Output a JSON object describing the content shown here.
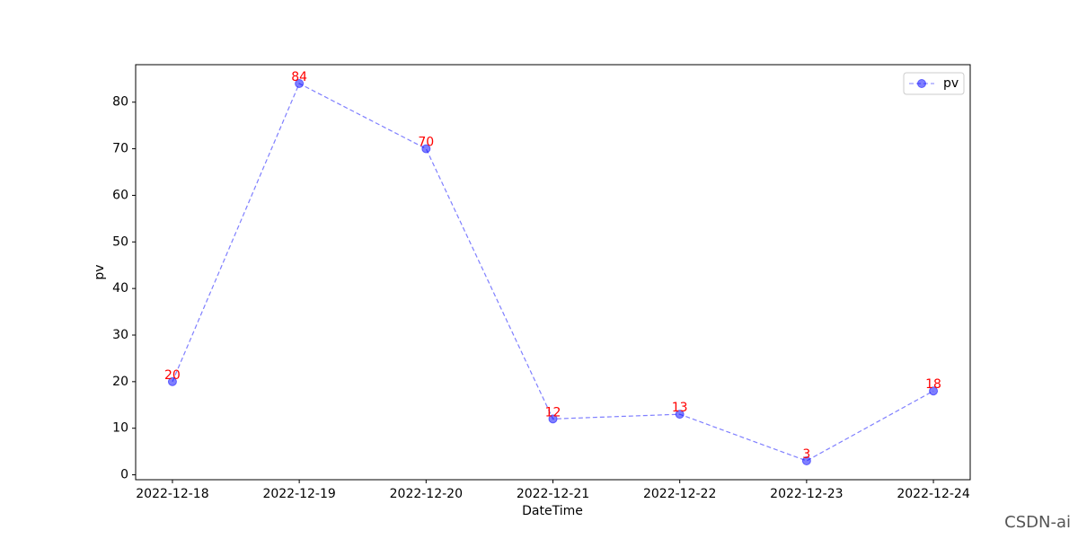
{
  "chart_data": {
    "type": "line",
    "x_label": "DateTime",
    "y_label": "pv",
    "categories": [
      "2022-12-18",
      "2022-12-19",
      "2022-12-20",
      "2022-12-21",
      "2022-12-22",
      "2022-12-23",
      "2022-12-24"
    ],
    "series": [
      {
        "name": "pv",
        "color": "#0000ff",
        "values": [
          20,
          84,
          70,
          12,
          13,
          3,
          18
        ]
      }
    ],
    "value_label_color": "#ff0000",
    "ylim": [
      -1.05,
      88.05
    ],
    "yticks": [
      0,
      10,
      20,
      30,
      40,
      50,
      60,
      70,
      80
    ],
    "grid": false,
    "legend": "upper right"
  },
  "watermark": "CSDN-ai"
}
